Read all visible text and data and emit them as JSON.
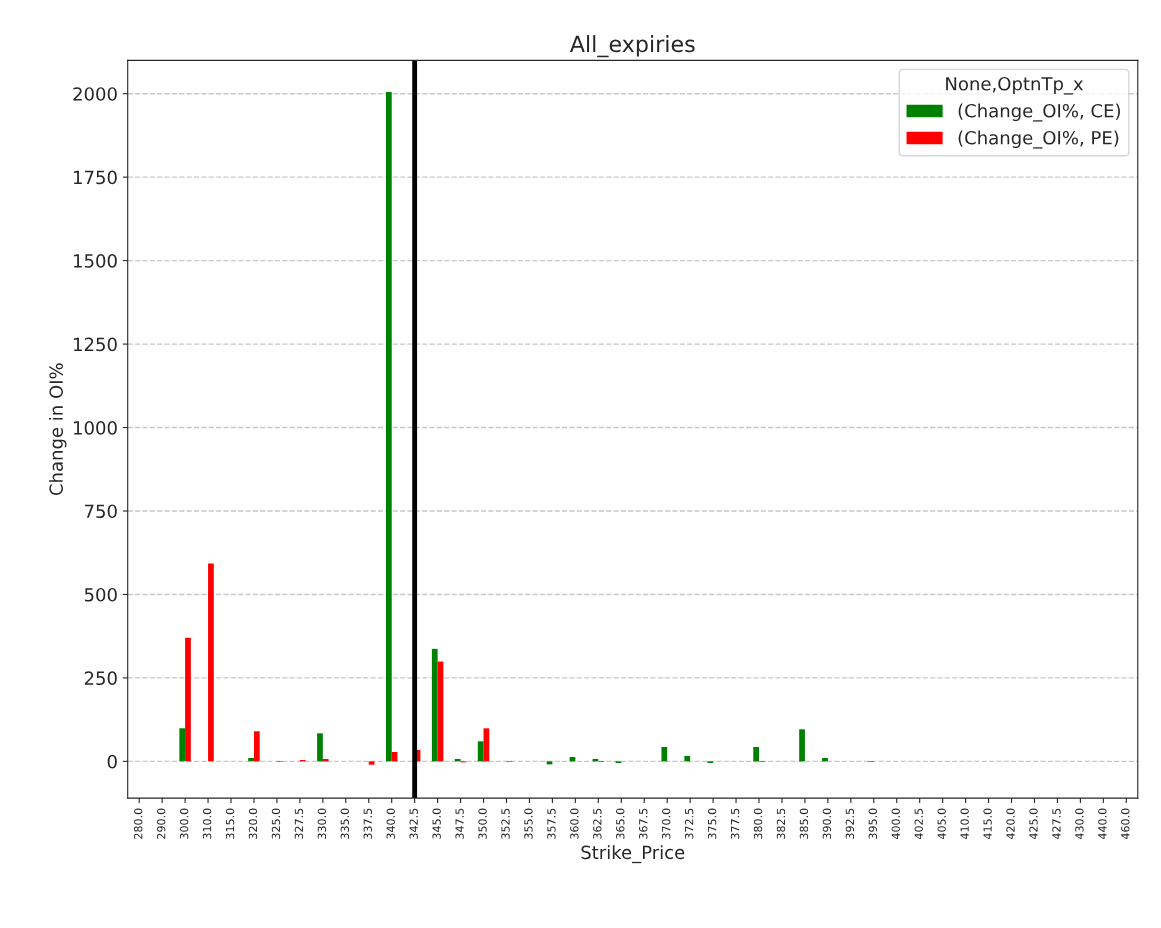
{
  "chart_data": {
    "type": "bar",
    "title": "All_expiries",
    "xlabel": "Strike_Price",
    "ylabel": "Change in OI%",
    "legend_title": "None,OptnTp_x",
    "categories": [
      "280.0",
      "290.0",
      "300.0",
      "310.0",
      "315.0",
      "320.0",
      "325.0",
      "327.5",
      "330.0",
      "335.0",
      "337.5",
      "340.0",
      "342.5",
      "345.0",
      "347.5",
      "350.0",
      "352.5",
      "355.0",
      "357.5",
      "360.0",
      "362.5",
      "365.0",
      "367.5",
      "370.0",
      "372.5",
      "375.0",
      "377.5",
      "380.0",
      "382.5",
      "385.0",
      "390.0",
      "392.5",
      "395.0",
      "400.0",
      "402.5",
      "405.0",
      "410.0",
      "415.0",
      "420.0",
      "425.0",
      "427.5",
      "430.0",
      "440.0",
      "460.0"
    ],
    "series": [
      {
        "name": "(Change_OI%, CE)",
        "color": "#008000",
        "values": [
          null,
          null,
          99,
          null,
          null,
          10,
          null,
          null,
          84,
          null,
          null,
          2005,
          null,
          337,
          7,
          60,
          null,
          null,
          -9,
          13,
          7,
          -5,
          null,
          43,
          16,
          -5,
          null,
          43,
          null,
          96,
          10,
          null,
          -2,
          null,
          null,
          null,
          null,
          null,
          null,
          null,
          null,
          null,
          null,
          null
        ]
      },
      {
        "name": "(Change_OI%, PE)",
        "color": "#ff0000",
        "values": [
          null,
          null,
          370,
          593,
          null,
          90,
          -2,
          4,
          7,
          null,
          -10,
          28,
          34,
          299,
          -3,
          99,
          -2,
          null,
          null,
          null,
          -2,
          null,
          null,
          null,
          null,
          null,
          null,
          -2,
          null,
          null,
          null,
          null,
          null,
          null,
          null,
          null,
          null,
          null,
          null,
          null,
          null,
          null,
          null,
          null
        ]
      }
    ],
    "ylim": [
      -110,
      2100
    ],
    "yticks": [
      0,
      250,
      500,
      750,
      1000,
      1250,
      1500,
      1750,
      2000
    ],
    "grid": "y",
    "legend": "top right",
    "ref_lines": [
      {
        "axis": "x",
        "value": "342.5",
        "color": "#000000"
      }
    ]
  }
}
